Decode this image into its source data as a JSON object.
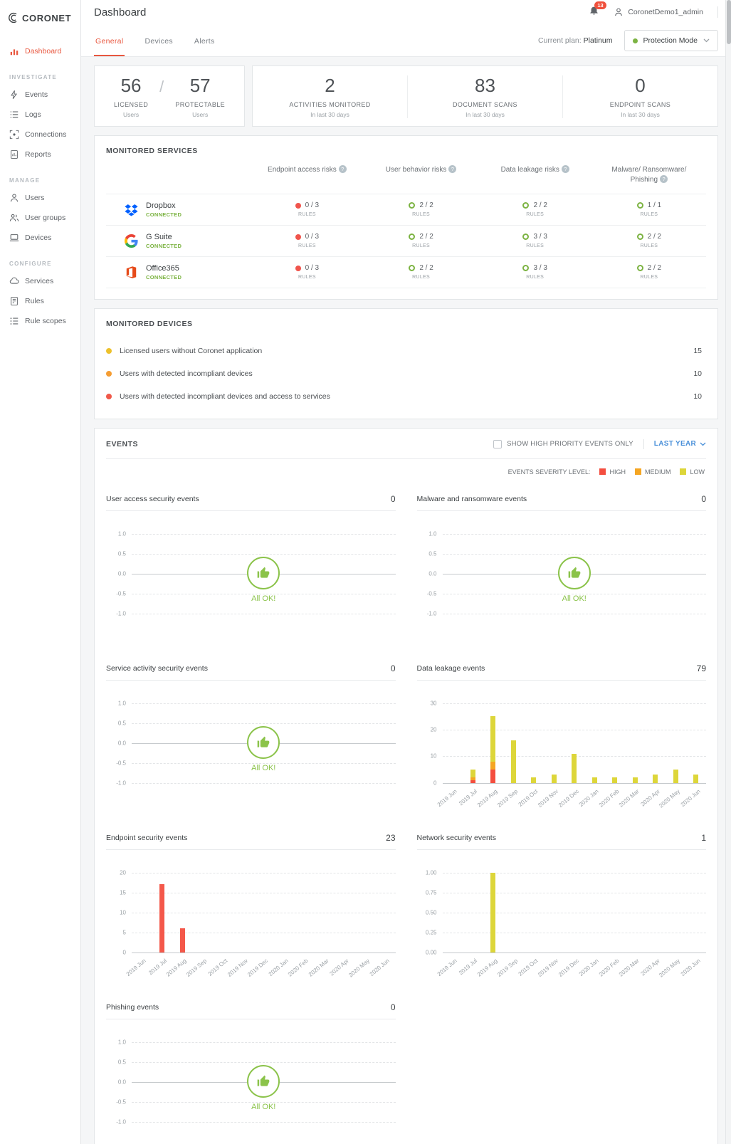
{
  "brand": {
    "name": "CORONET"
  },
  "header": {
    "title": "Dashboard",
    "notifications": "13",
    "username": "CoronetDemo1_admin"
  },
  "sidebar": {
    "dashboard_label": "Dashboard",
    "sections": [
      {
        "label": "INVESTIGATE",
        "items": [
          {
            "label": "Events"
          },
          {
            "label": "Logs"
          },
          {
            "label": "Connections"
          },
          {
            "label": "Reports"
          }
        ]
      },
      {
        "label": "MANAGE",
        "items": [
          {
            "label": "Users"
          },
          {
            "label": "User groups"
          },
          {
            "label": "Devices"
          }
        ]
      },
      {
        "label": "CONFIGURE",
        "items": [
          {
            "label": "Services"
          },
          {
            "label": "Rules"
          },
          {
            "label": "Rule scopes"
          }
        ]
      }
    ]
  },
  "tabs": [
    {
      "label": "General"
    },
    {
      "label": "Devices"
    },
    {
      "label": "Alerts"
    }
  ],
  "plan": {
    "label": "Current plan:",
    "value": "Platinum"
  },
  "protection_mode": {
    "label": "Protection Mode"
  },
  "stats": {
    "slash": "/",
    "licensed": {
      "value": "56",
      "label": "LICENSED",
      "sub": "Users"
    },
    "protectable": {
      "value": "57",
      "label": "PROTECTABLE",
      "sub": "Users"
    },
    "activities": {
      "value": "2",
      "label": "ACTIVITIES MONITORED",
      "sub": "In last 30 days"
    },
    "documents": {
      "value": "83",
      "label": "DOCUMENT SCANS",
      "sub": "In last 30 days"
    },
    "endpoints": {
      "value": "0",
      "label": "ENDPOINT SCANS",
      "sub": "In last 30 days"
    }
  },
  "monitored_services": {
    "title": "MONITORED SERVICES",
    "info_symbol": "?",
    "columns": [
      "Endpoint access risks",
      "User behavior risks",
      "Data leakage risks",
      "Malware/ Ransomware/ Phishing"
    ],
    "connected_label": "CONNECTED",
    "rules_label": "RULES",
    "rows": [
      {
        "name": "Dropbox",
        "cells": [
          {
            "value": "0 / 3",
            "status": "red"
          },
          {
            "value": "2 / 2",
            "status": "green"
          },
          {
            "value": "2 / 2",
            "status": "green"
          },
          {
            "value": "1 / 1",
            "status": "green"
          }
        ]
      },
      {
        "name": "G Suite",
        "cells": [
          {
            "value": "0 / 3",
            "status": "red"
          },
          {
            "value": "2 / 2",
            "status": "green"
          },
          {
            "value": "3 / 3",
            "status": "green"
          },
          {
            "value": "2 / 2",
            "status": "green"
          }
        ]
      },
      {
        "name": "Office365",
        "cells": [
          {
            "value": "0 / 3",
            "status": "red"
          },
          {
            "value": "2 / 2",
            "status": "green"
          },
          {
            "value": "3 / 3",
            "status": "green"
          },
          {
            "value": "2 / 2",
            "status": "green"
          }
        ]
      }
    ]
  },
  "monitored_devices": {
    "title": "MONITORED DEVICES",
    "rows": [
      {
        "label": "Licensed users without Coronet application",
        "value": "15",
        "color": "#edc12c"
      },
      {
        "label": "Users with detected incompliant devices",
        "value": "10",
        "color": "#f59d33"
      },
      {
        "label": "Users with detected incompliant devices and access to services",
        "value": "10",
        "color": "#f0594a"
      }
    ]
  },
  "events": {
    "title": "EVENTS",
    "high_priority_label": "SHOW HIGH PRIORITY EVENTS ONLY",
    "range_label": "LAST YEAR",
    "severity_label": "EVENTS SEVERITY LEVEL:",
    "severities": [
      {
        "label": "HIGH",
        "color": "#f44e3f"
      },
      {
        "label": "MEDIUM",
        "color": "#f5a623"
      },
      {
        "label": "LOW",
        "color": "#ddd63a"
      }
    ]
  },
  "chart_data": [
    {
      "id": "user-access",
      "type": "line",
      "title": "User access security events",
      "total": "0",
      "empty": true,
      "ok_label": "All OK!",
      "ylim": [
        -1,
        1
      ],
      "yticks": [
        "1.0",
        "0.5",
        "0.0",
        "-0.5",
        "-1.0"
      ]
    },
    {
      "id": "malware",
      "type": "line",
      "title": "Malware and ransomware events",
      "total": "0",
      "empty": true,
      "ok_label": "All OK!",
      "ylim": [
        -1,
        1
      ],
      "yticks": [
        "1.0",
        "0.5",
        "0.0",
        "-0.5",
        "-1.0"
      ]
    },
    {
      "id": "service-activity",
      "type": "line",
      "title": "Service activity security events",
      "total": "0",
      "empty": true,
      "ok_label": "All OK!",
      "ylim": [
        -1,
        1
      ],
      "yticks": [
        "1.0",
        "0.5",
        "0.0",
        "-0.5",
        "-1.0"
      ]
    },
    {
      "id": "data-leakage",
      "type": "bar",
      "title": "Data leakage events",
      "total": "79",
      "ylim": [
        0,
        30
      ],
      "yticks": [
        "0",
        "10",
        "20",
        "30"
      ],
      "categories": [
        "2019 Jun",
        "2019 Jul",
        "2019 Aug",
        "2019 Sep",
        "2019 Oct",
        "2019 Nov",
        "2019 Dec",
        "2020 Jan",
        "2020 Feb",
        "2020 Mar",
        "2020 Apr",
        "2020 May",
        "2020 Jun"
      ],
      "series": [
        {
          "name": "HIGH",
          "color": "#f44e3f",
          "values": [
            0,
            1,
            5,
            0,
            0,
            0,
            0,
            0,
            0,
            0,
            0,
            0,
            0
          ]
        },
        {
          "name": "MEDIUM",
          "color": "#f5a623",
          "values": [
            0,
            1,
            3,
            0,
            0,
            0,
            0,
            0,
            0,
            0,
            0,
            0,
            0
          ]
        },
        {
          "name": "LOW",
          "color": "#ddd63a",
          "values": [
            0,
            3,
            17,
            16,
            2,
            3,
            11,
            2,
            2,
            2,
            3,
            5,
            3
          ]
        }
      ]
    },
    {
      "id": "endpoint",
      "type": "bar",
      "title": "Endpoint security events",
      "total": "23",
      "ylim": [
        0,
        20
      ],
      "yticks": [
        "0",
        "5",
        "10",
        "15",
        "20"
      ],
      "categories": [
        "2019 Jun",
        "2019 Jul",
        "2019 Aug",
        "2019 Sep",
        "2019 Oct",
        "2019 Nov",
        "2019 Dec",
        "2020 Jan",
        "2020 Feb",
        "2020 Mar",
        "2020 Apr",
        "2020 May",
        "2020 Jun"
      ],
      "series": [
        {
          "name": "HIGH",
          "color": "#f4584a",
          "values": [
            0,
            17,
            6,
            0,
            0,
            0,
            0,
            0,
            0,
            0,
            0,
            0,
            0
          ]
        }
      ]
    },
    {
      "id": "network",
      "type": "bar",
      "title": "Network security events",
      "total": "1",
      "ylim": [
        0,
        1
      ],
      "yticks": [
        "0.00",
        "0.25",
        "0.50",
        "0.75",
        "1.00"
      ],
      "categories": [
        "2019 Jun",
        "2019 Jul",
        "2019 Aug",
        "2019 Sep",
        "2019 Oct",
        "2019 Nov",
        "2019 Dec",
        "2020 Jan",
        "2020 Feb",
        "2020 Mar",
        "2020 Apr",
        "2020 May",
        "2020 Jun"
      ],
      "series": [
        {
          "name": "LOW",
          "color": "#ddd63a",
          "values": [
            0,
            0,
            1,
            0,
            0,
            0,
            0,
            0,
            0,
            0,
            0,
            0,
            0
          ]
        }
      ]
    },
    {
      "id": "phishing",
      "type": "line",
      "title": "Phishing events",
      "total": "0",
      "empty": true,
      "ok_label": "All OK!",
      "ylim": [
        -1,
        1
      ],
      "yticks": [
        "1.0",
        "0.5",
        "0.0",
        "-0.5",
        "-1.0"
      ]
    }
  ]
}
